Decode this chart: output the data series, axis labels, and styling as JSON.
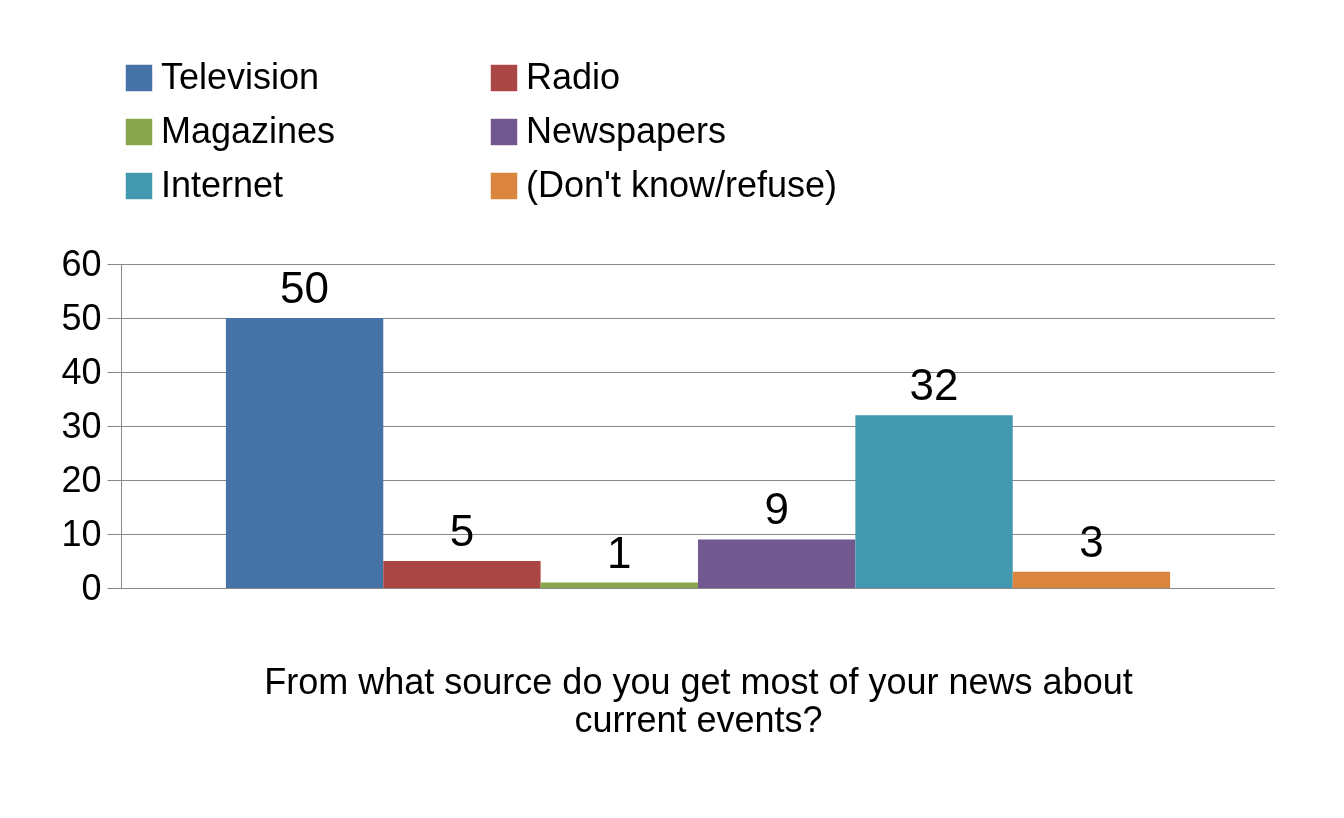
{
  "chart_data": {
    "type": "bar",
    "xlabel": "From what source do you get most of your news about current events?",
    "categories": [
      null
    ],
    "series": [
      {
        "name": "Television",
        "color": "#4572a7",
        "values": [
          50
        ]
      },
      {
        "name": "Radio",
        "color": "#aa4643",
        "values": [
          5
        ]
      },
      {
        "name": "Magazines",
        "color": "#89a54e",
        "values": [
          1
        ]
      },
      {
        "name": "Newspapers",
        "color": "#71588f",
        "values": [
          9
        ]
      },
      {
        "name": "Internet",
        "color": "#4198af",
        "values": [
          32
        ]
      },
      {
        "name": "(Don't know/refuse)",
        "color": "#db843d",
        "values": [
          3
        ]
      }
    ],
    "ylim": [
      0,
      60
    ],
    "yticks": [
      0,
      10,
      20,
      30,
      40,
      50,
      60
    ],
    "grid": "y",
    "legend": "top",
    "data_labels": true
  }
}
